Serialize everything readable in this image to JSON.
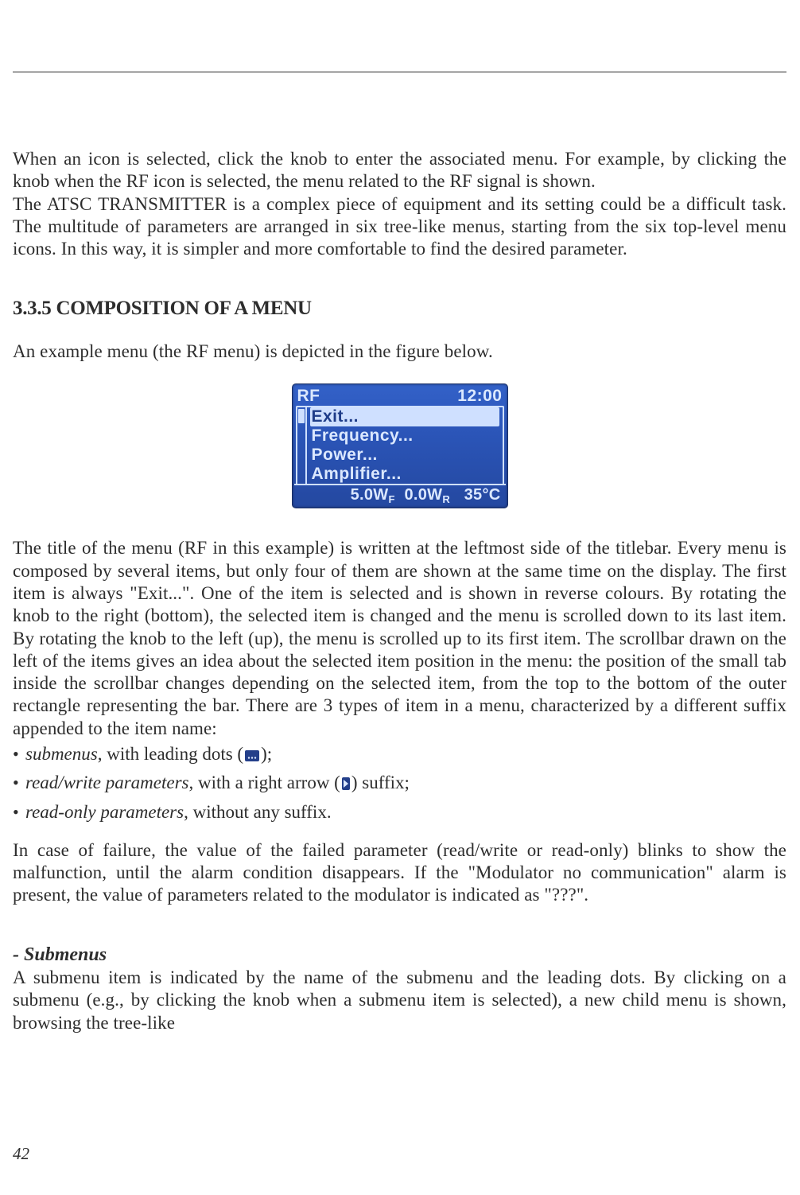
{
  "page": {
    "number": "42"
  },
  "intro": {
    "p1": "When an icon is selected, click the knob to enter the associated menu. For example, by clicking the knob when the RF icon is selected, the menu related to the RF signal is shown.",
    "p2": "The ATSC TRANSMITTER is a complex piece of equipment and its setting could be a difficult task. The multitude of parameters are arranged in six tree-like menus, starting from the six top-level menu icons. In this way, it is simpler and more comfortable to find the desired parameter."
  },
  "section": {
    "heading": "3.3.5 COMPOSITION OF A MENU",
    "lead": "An example menu (the RF menu) is depicted in the figure below."
  },
  "lcd": {
    "title_left": "RF",
    "title_right": "12:00",
    "items": [
      "Exit...",
      "Frequency...",
      "Power...",
      "Amplifier..."
    ],
    "selected_index": 0,
    "status": {
      "wf": "5.0W",
      "wf_sub": "F",
      "wr": "0.0W",
      "wr_sub": "R",
      "temp": "35°C"
    },
    "colors": {
      "bg_top": "#3361c8",
      "bg_bottom": "#2448a0",
      "fg": "#dbe8ff",
      "border": "#1a2f66"
    }
  },
  "body": {
    "p3": "The title of the menu (RF in this example) is written at the leftmost side of the titlebar. Every menu is composed by several items, but only four of them are shown at the same time on the display. The first item is always \"Exit...\". One of the item is selected and is shown in reverse colours. By rotating the knob to the right (bottom), the selected item is changed and the menu is scrolled down to its last item. By rotating the knob to the left (up), the menu is scrolled up to its first item. The scrollbar drawn on the left of the items gives an idea about the selected item position in the menu: the position of the small tab inside the scrollbar changes depending on the selected item, from the top to the bottom of the outer rectangle representing the bar. There are 3 types of item in a menu, characterized by a different suffix appended to the item name:"
  },
  "bullets": {
    "b1_em": "submenus",
    "b1_rest": ", with leading dots (",
    "b1_close": ");",
    "b2_em": "read/write parameters",
    "b2_rest": ", with a right arrow (",
    "b2_close": ") suffix;",
    "b3_em": "read-only parameters",
    "b3_rest": ", without any suffix."
  },
  "failure": {
    "p": "In case of failure, the value of the failed parameter (read/write or read-only) blinks to show the malfunction, until the alarm condition disappears. If the \"Modulator no communication\" alarm is present, the value of parameters related to the modulator is indicated as \"???\"."
  },
  "submenus": {
    "heading": "- Submenus",
    "p": "A submenu item is indicated by the name of the submenu and the leading dots. By clicking on a submenu (e.g., by clicking the knob when a submenu item is selected), a new child menu is shown, browsing the tree-like"
  }
}
